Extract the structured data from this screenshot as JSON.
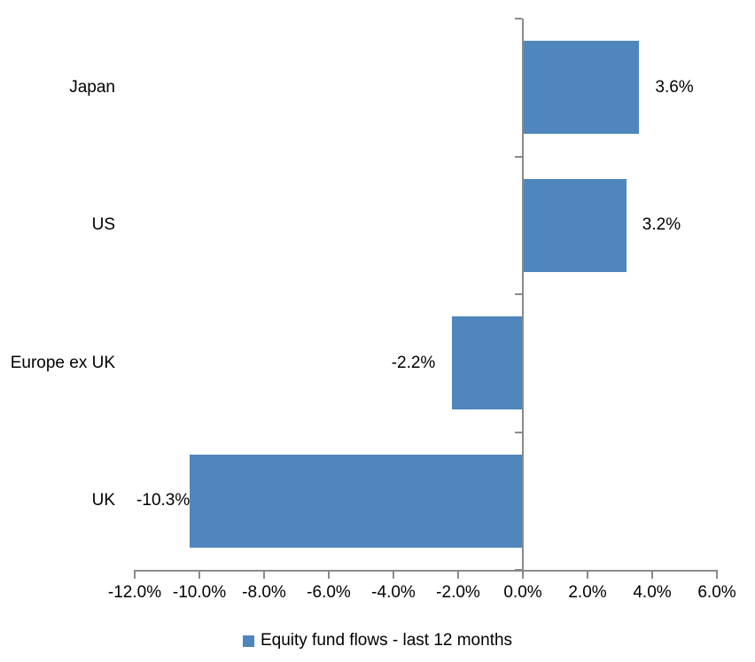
{
  "chart_data": {
    "type": "bar",
    "orientation": "horizontal",
    "title": "",
    "categories": [
      "Japan",
      "US",
      "Europe ex UK",
      "UK"
    ],
    "series": [
      {
        "name": "Equity fund flows - last 12 months",
        "values": [
          3.6,
          3.2,
          -2.2,
          -10.3
        ],
        "data_labels": [
          "3.6%",
          "3.2%",
          "-2.2%",
          "-10.3%"
        ]
      }
    ],
    "xlabel": "",
    "ylabel": "",
    "xlim": [
      -12,
      6
    ],
    "x_tick_labels": [
      "-12.0%",
      "-10.0%",
      "-8.0%",
      "-6.0%",
      "-4.0%",
      "-2.0%",
      "0.0%",
      "2.0%",
      "4.0%",
      "6.0%"
    ],
    "grid": false,
    "legend_position": "bottom",
    "data_label_position": "outside-end",
    "colors": {
      "bar": "#4F86BD",
      "axis": "#8A8A8A",
      "text": "#000000",
      "background": "#FFFFFF"
    }
  },
  "legend": {
    "label": "Equity fund flows - last 12 months"
  }
}
